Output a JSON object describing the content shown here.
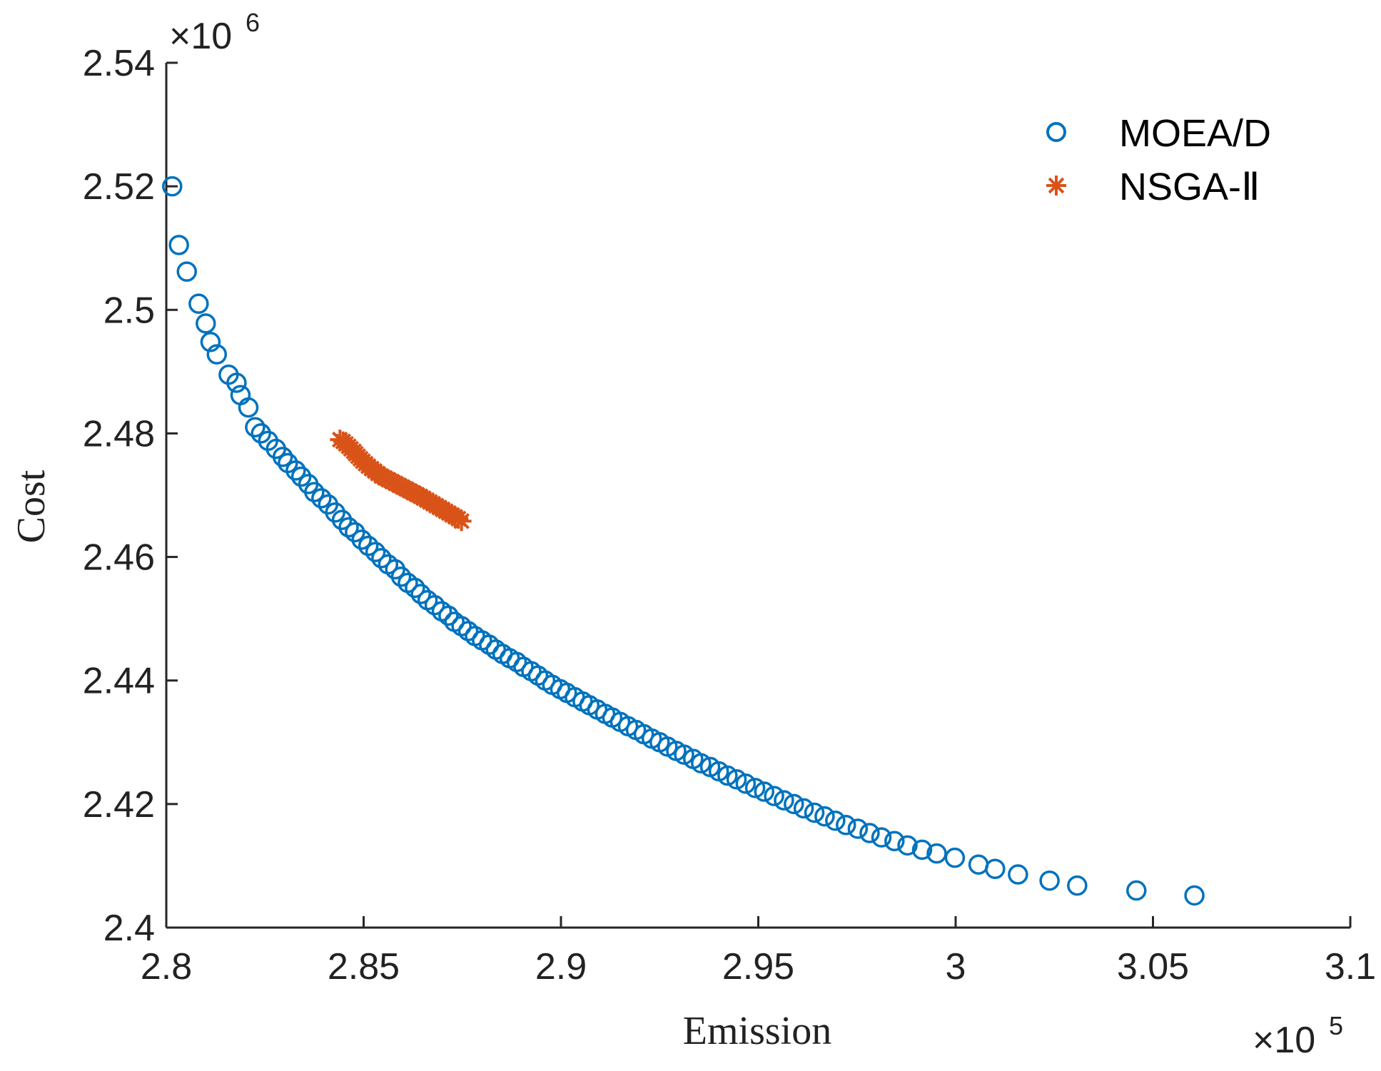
{
  "chart_data": {
    "type": "scatter",
    "title": "",
    "xlabel": "Emission",
    "ylabel": "Cost",
    "x_multiplier_label": "×10",
    "x_multiplier_exp": "5",
    "y_multiplier_label": "×10",
    "y_multiplier_exp": "6",
    "xlim": [
      2.8,
      3.1
    ],
    "ylim": [
      2.4,
      2.54
    ],
    "x_ticks": [
      2.8,
      2.85,
      2.9,
      2.95,
      3.0,
      3.05,
      3.1
    ],
    "x_tick_labels": [
      "2.8",
      "2.85",
      "2.9",
      "2.95",
      "3",
      "3.05",
      "3.1"
    ],
    "y_ticks": [
      2.4,
      2.42,
      2.44,
      2.46,
      2.48,
      2.5,
      2.52,
      2.54
    ],
    "y_tick_labels": [
      "2.4",
      "2.42",
      "2.44",
      "2.46",
      "2.48",
      "2.5",
      "2.52",
      "2.54"
    ],
    "grid": false,
    "legend_position": "top-right",
    "series": [
      {
        "name": "MOEA/D",
        "marker": "circle",
        "color": "#0072BD",
        "x": [
          2.8015,
          2.8032,
          2.8052,
          2.8082,
          2.81,
          2.8112,
          2.8128,
          2.8158,
          2.8178,
          2.8188,
          2.8208,
          2.8225,
          2.824,
          2.8258,
          2.8278,
          2.8295,
          2.8308,
          2.8328,
          2.8342,
          2.836,
          2.8375,
          2.8393,
          2.841,
          2.8428,
          2.8445,
          2.8462,
          2.8478,
          2.8495,
          2.8512,
          2.853,
          2.8545,
          2.8562,
          2.858,
          2.8595,
          2.8612,
          2.863,
          2.8645,
          2.8662,
          2.868,
          2.8698,
          2.8715,
          2.873,
          2.8748,
          2.8765,
          2.8782,
          2.88,
          2.8818,
          2.8835,
          2.8852,
          2.887,
          2.8888,
          2.8905,
          2.8925,
          2.8942,
          2.896,
          2.8978,
          2.8998,
          2.9015,
          2.9035,
          2.9055,
          2.9072,
          2.9092,
          2.9112,
          2.913,
          2.915,
          2.917,
          2.919,
          2.921,
          2.923,
          2.925,
          2.927,
          2.9292,
          2.9312,
          2.9335,
          2.9355,
          2.9378,
          2.94,
          2.9422,
          2.9445,
          2.9468,
          2.9492,
          2.9515,
          2.954,
          2.9565,
          2.959,
          2.9615,
          2.9642,
          2.9668,
          2.9695,
          2.9722,
          2.9752,
          2.9782,
          2.9812,
          2.9845,
          2.9878,
          2.9915,
          2.9952,
          2.9998,
          3.0058,
          3.01,
          3.0158,
          3.0238,
          3.0308,
          3.0458,
          3.0605
        ],
        "y": [
          2.52,
          2.5105,
          2.5062,
          2.501,
          2.4978,
          2.4948,
          2.4928,
          2.4895,
          2.4882,
          2.4862,
          2.4842,
          2.481,
          2.48,
          2.4788,
          2.4775,
          2.4762,
          2.4752,
          2.474,
          2.473,
          2.4718,
          2.4705,
          2.4695,
          2.4685,
          2.4672,
          2.466,
          2.4648,
          2.464,
          2.4628,
          2.4618,
          2.4608,
          2.4598,
          2.4588,
          2.458,
          2.4568,
          2.4558,
          2.455,
          2.454,
          2.453,
          2.4522,
          2.4512,
          2.4505,
          2.4495,
          2.4488,
          2.448,
          2.4472,
          2.4465,
          2.4458,
          2.445,
          2.4443,
          2.4436,
          2.443,
          2.4422,
          2.4415,
          2.4408,
          2.44,
          2.4393,
          2.4386,
          2.438,
          2.4373,
          2.4366,
          2.436,
          2.4353,
          2.4346,
          2.434,
          2.4333,
          2.4326,
          2.432,
          2.4313,
          2.4306,
          2.43,
          2.4293,
          2.4286,
          2.428,
          2.4273,
          2.4266,
          2.426,
          2.4253,
          2.4246,
          2.424,
          2.4233,
          2.4226,
          2.422,
          2.4213,
          2.4206,
          2.42,
          2.4193,
          2.4186,
          2.418,
          2.4173,
          2.4166,
          2.416,
          2.4153,
          2.4146,
          2.414,
          2.4133,
          2.4126,
          2.412,
          2.4113,
          2.4102,
          2.4095,
          2.4086,
          2.4076,
          2.4068,
          2.406,
          2.4052
        ]
      },
      {
        "name": "NSGA-Ⅱ",
        "marker": "asterisk",
        "color": "#D95319",
        "x": [
          2.844,
          2.8448,
          2.8455,
          2.8462,
          2.8468,
          2.8475,
          2.848,
          2.8486,
          2.8492,
          2.8498,
          2.8505,
          2.8512,
          2.852,
          2.8528,
          2.8536,
          2.8545,
          2.8554,
          2.8563,
          2.8572,
          2.8581,
          2.859,
          2.8599,
          2.8608,
          2.8617,
          2.8626,
          2.8635,
          2.8644,
          2.8652,
          2.866,
          2.8668,
          2.8676,
          2.8684,
          2.8692,
          2.87,
          2.8708,
          2.8716,
          2.8724,
          2.8732,
          2.874,
          2.8748
        ],
        "y": [
          2.479,
          2.4787,
          2.4783,
          2.4779,
          2.4775,
          2.4771,
          2.4767,
          2.4763,
          2.4759,
          2.4755,
          2.4751,
          2.4747,
          2.4743,
          2.4739,
          2.4735,
          2.4731,
          2.4728,
          2.4725,
          2.4722,
          2.4719,
          2.4716,
          2.4713,
          2.471,
          2.4707,
          2.4704,
          2.4701,
          2.4698,
          2.4695,
          2.4692,
          2.4689,
          2.4686,
          2.4683,
          2.468,
          2.4677,
          2.4674,
          2.4671,
          2.4668,
          2.4665,
          2.4662,
          2.4658
        ]
      }
    ]
  }
}
